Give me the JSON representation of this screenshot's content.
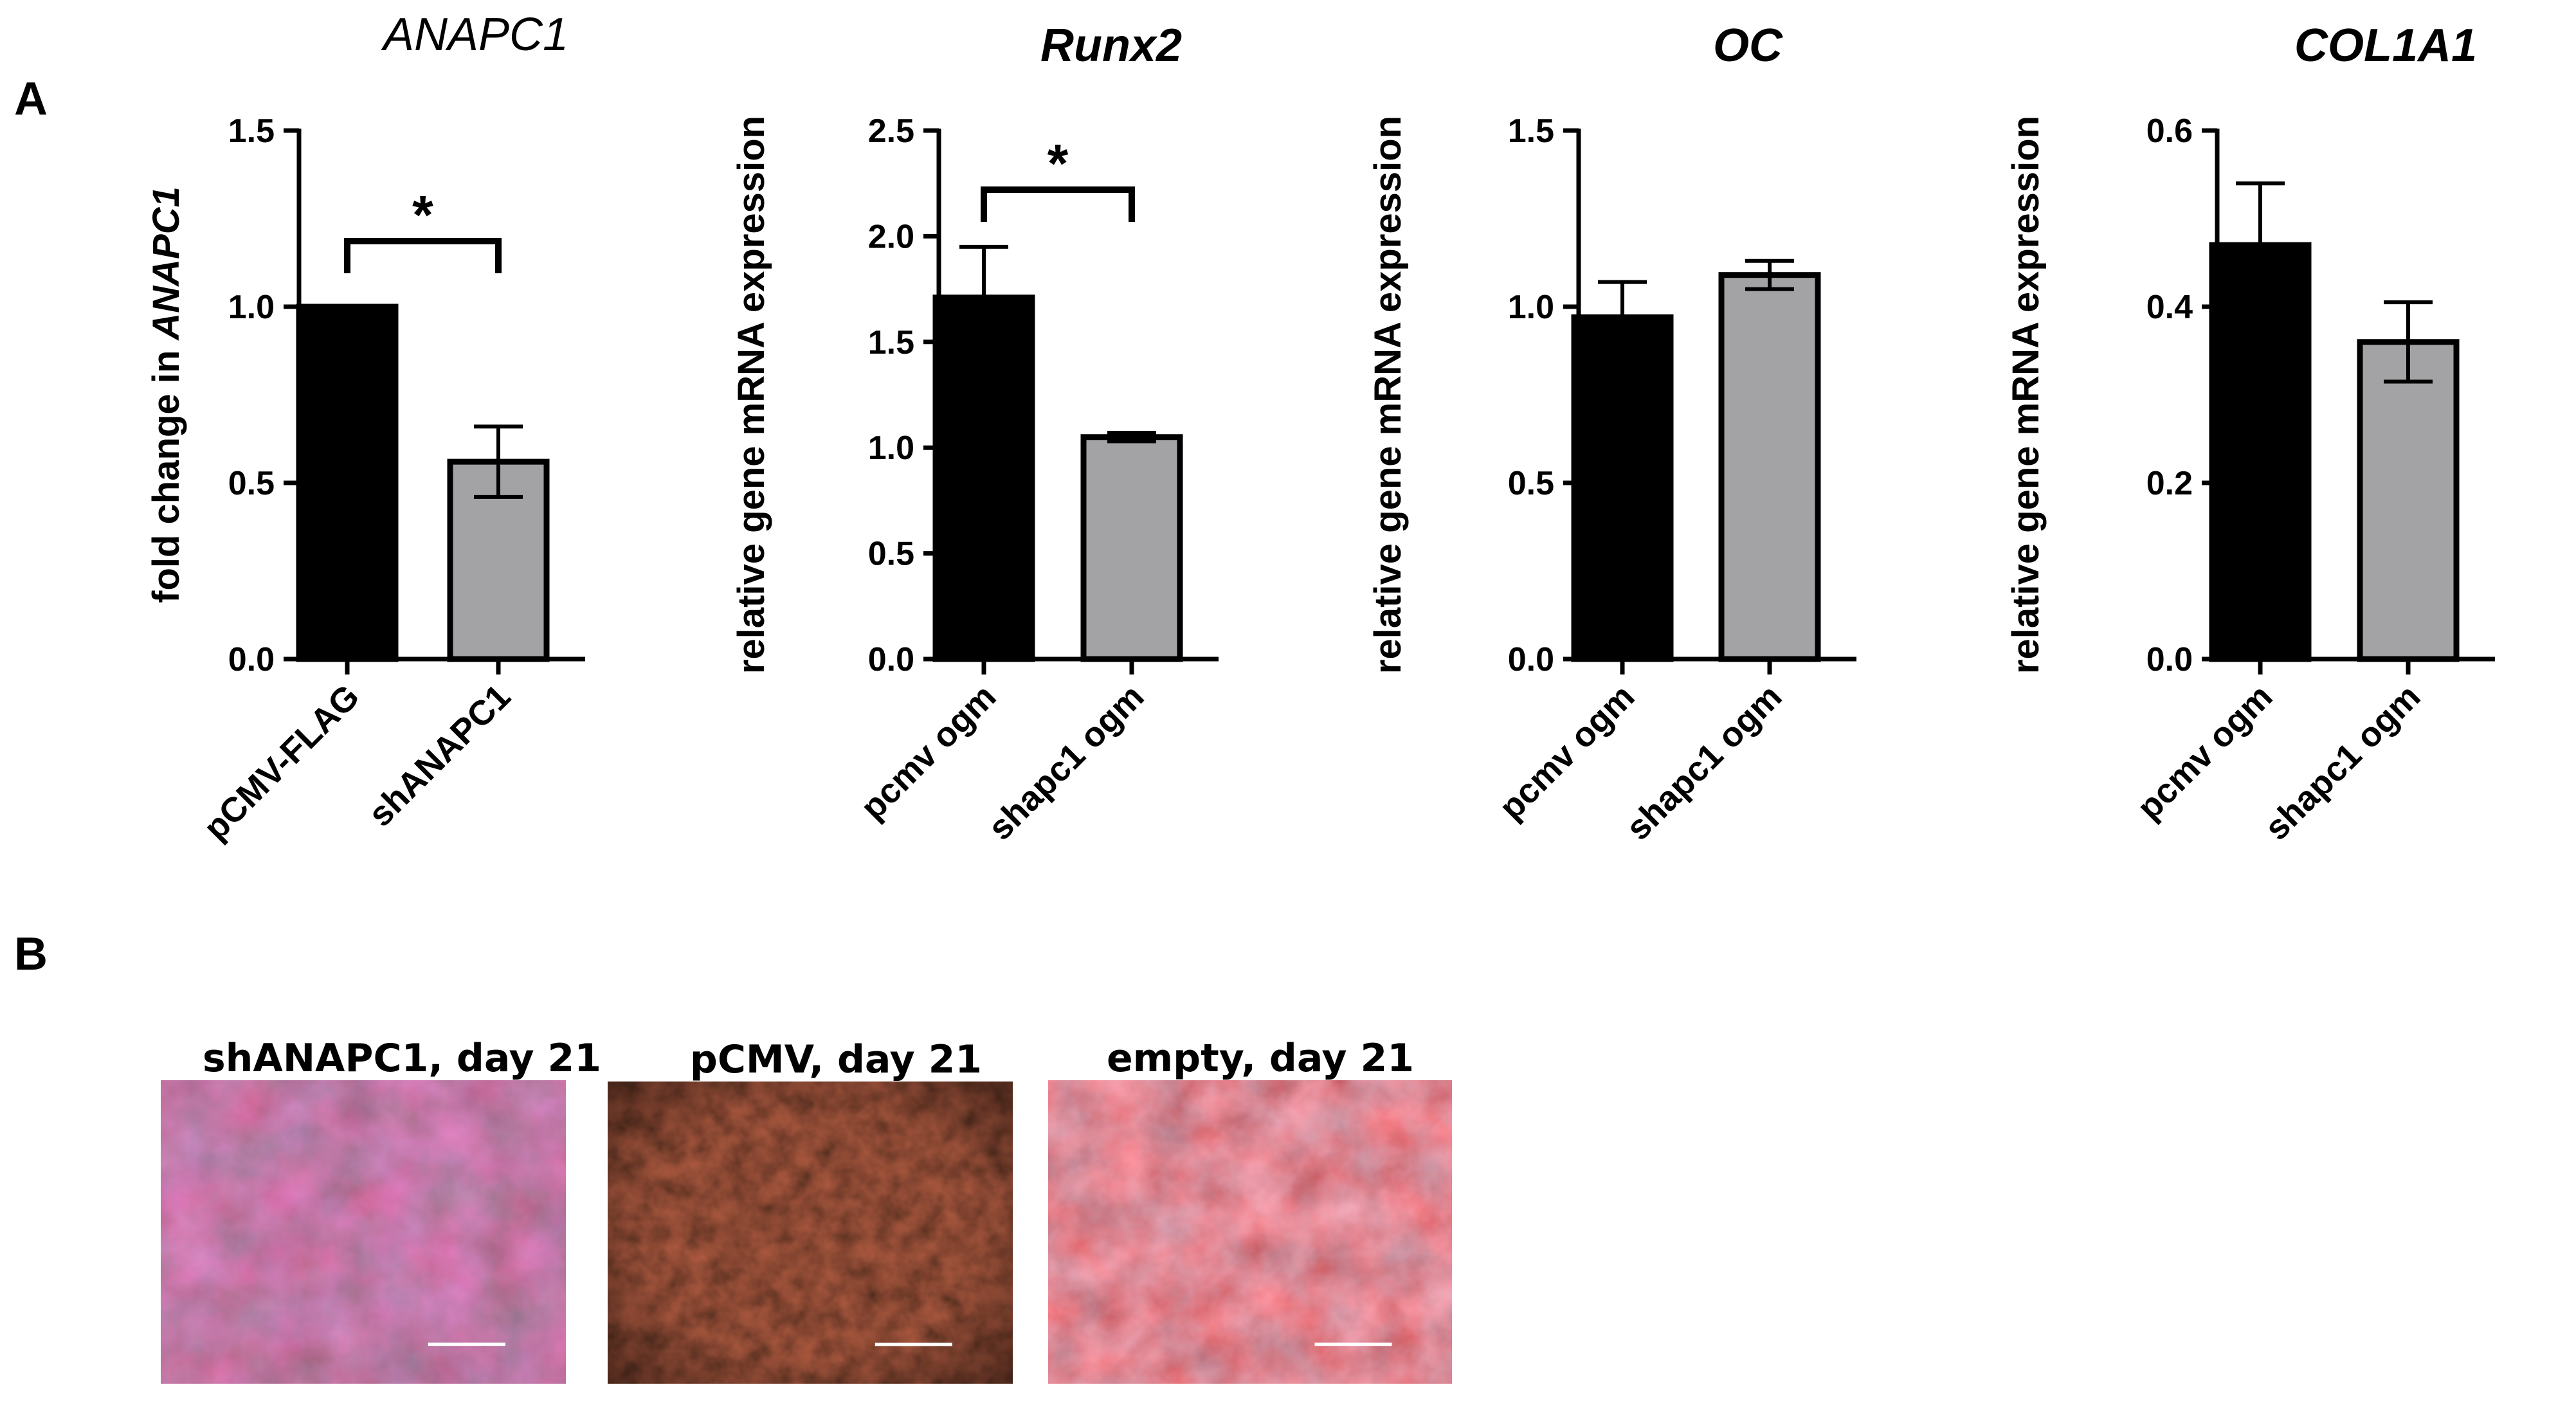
{
  "figure": {
    "panel_a_label": "A",
    "panel_b_label": "B"
  },
  "colors": {
    "bar_primary": "#000000",
    "bar_secondary": "#a3a3a6",
    "axis": "#000000"
  },
  "chart_data": [
    {
      "type": "bar",
      "title": "ANAPC1",
      "title_bold": false,
      "ylabel_prefix": "fold change in ",
      "ylabel_italic": "ANAPC1",
      "categories": [
        "pCMV-FLAG",
        "shANAPC1"
      ],
      "values": [
        1.0,
        0.56
      ],
      "errors": [
        0.0,
        0.1
      ],
      "ylim": [
        0,
        1.5
      ],
      "yticks": [
        "0.0",
        "0.5",
        "1.0",
        "1.5"
      ],
      "significance": "*",
      "grid": false
    },
    {
      "type": "bar",
      "title": "Runx2",
      "title_bold": true,
      "ylabel_prefix": "relative gene mRNA expression",
      "ylabel_italic": "",
      "categories": [
        "pcmv ogm",
        "shapc1 ogm"
      ],
      "values": [
        1.71,
        1.05
      ],
      "errors": [
        0.24,
        0.02
      ],
      "ylim": [
        0,
        2.5
      ],
      "yticks": [
        "0.0",
        "0.5",
        "1.0",
        "1.5",
        "2.0",
        "2.5"
      ],
      "significance": "*",
      "grid": false
    },
    {
      "type": "bar",
      "title": "OC",
      "title_bold": true,
      "ylabel_prefix": "relative gene mRNA expression",
      "ylabel_italic": "",
      "categories": [
        "pcmv ogm",
        "shapc1 ogm"
      ],
      "values": [
        0.97,
        1.09
      ],
      "errors": [
        0.1,
        0.04
      ],
      "ylim": [
        0,
        1.5
      ],
      "yticks": [
        "0.0",
        "0.5",
        "1.0",
        "1.5"
      ],
      "significance": "",
      "grid": false
    },
    {
      "type": "bar",
      "title": "COL1A1",
      "title_bold": true,
      "ylabel_prefix": "relative gene mRNA expression",
      "ylabel_italic": "",
      "categories": [
        "pcmv ogm",
        "shapc1 ogm"
      ],
      "values": [
        0.47,
        0.36
      ],
      "errors": [
        0.07,
        0.045
      ],
      "ylim": [
        0,
        0.6
      ],
      "yticks": [
        "0.0",
        "0.2",
        "0.4",
        "0.6"
      ],
      "significance": "",
      "grid": false
    }
  ],
  "micrographs": [
    {
      "caption": "shANAPC1, day 21",
      "stain": "alizarin-red-mottled",
      "base": "#8a2f24",
      "accent": "#c4352a",
      "patch": "#8d8aa0"
    },
    {
      "caption": "pCMV, day 21",
      "stain": "alizarin-red-dark",
      "base": "#3a1a14",
      "accent": "#7a2418",
      "patch": "#241410"
    },
    {
      "caption": "empty, day 21",
      "stain": "alizarin-red-bright",
      "base": "#b8362a",
      "accent": "#e2462f",
      "patch": "#c5a8ae"
    }
  ]
}
